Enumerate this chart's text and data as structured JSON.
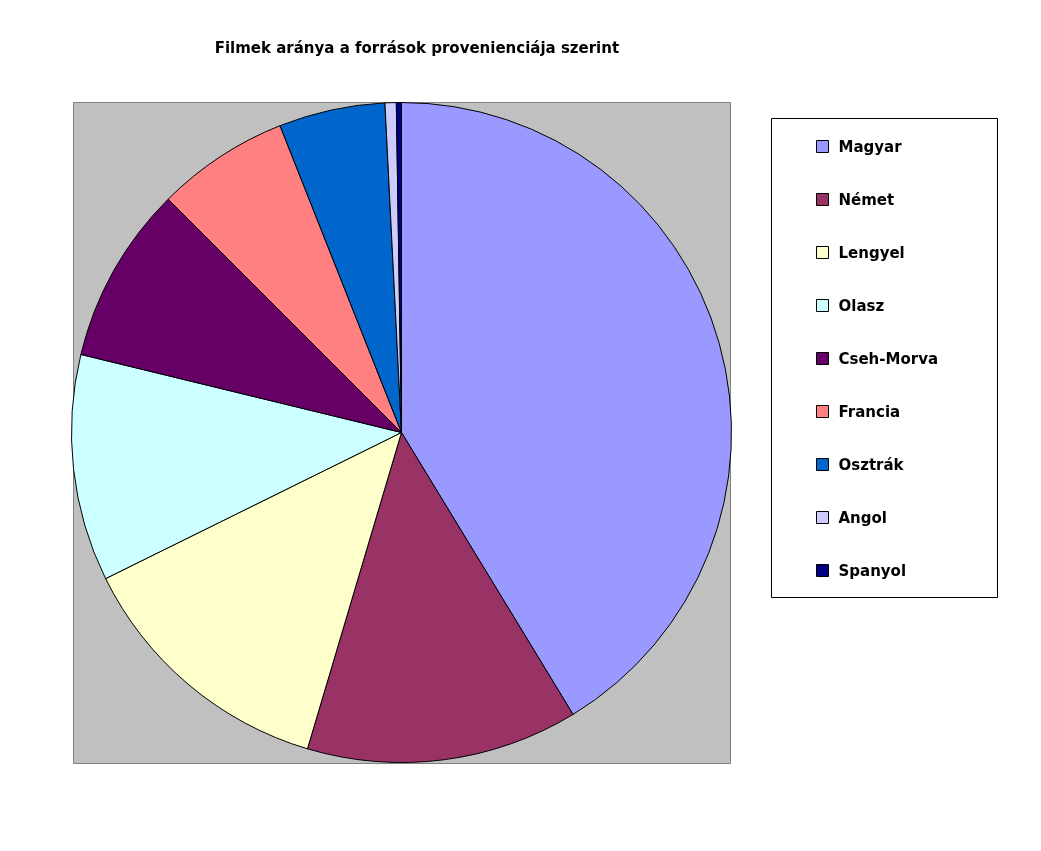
{
  "chart_data": {
    "type": "pie",
    "title": "Filmek aránya a források provenienciája szerint",
    "categories": [
      "Magyar",
      "Német",
      "Lengyel",
      "Olasz",
      "Cseh-Morva",
      "Francia",
      "Osztrák",
      "Angol",
      "Spanyol"
    ],
    "values": [
      41.3,
      13.3,
      13.1,
      11.1,
      8.7,
      6.5,
      5.2,
      0.55,
      0.25
    ],
    "colors": [
      "#9999ff",
      "#993366",
      "#ffffcc",
      "#ccffff",
      "#660066",
      "#ff8080",
      "#0066cc",
      "#ccccff",
      "#000080"
    ],
    "legend": "right"
  }
}
